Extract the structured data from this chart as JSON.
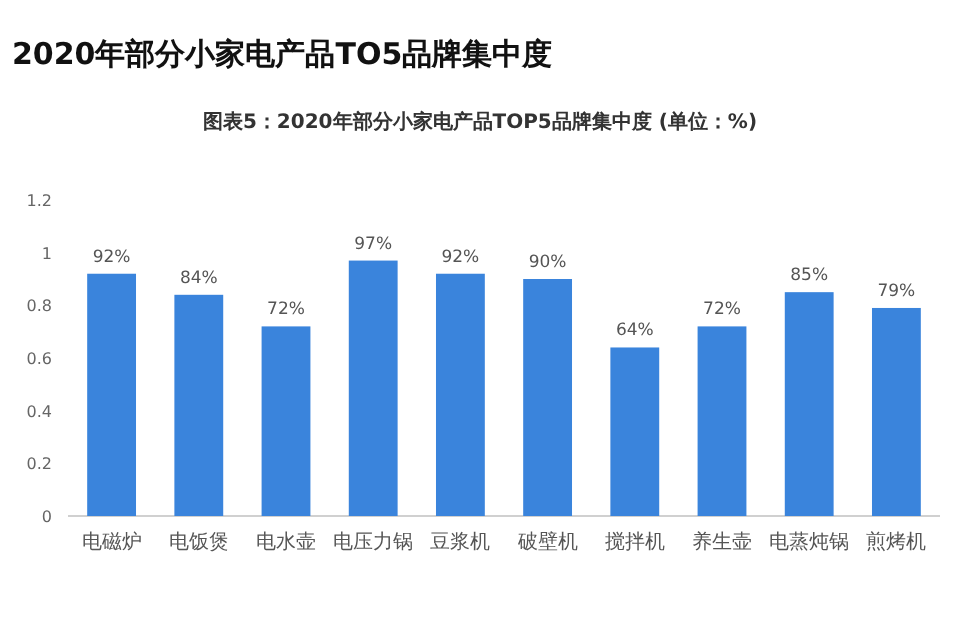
{
  "chart_data": {
    "type": "bar",
    "title": "2020年部分小家电产品TO5品牌集中度",
    "subtitle": "图表5：2020年部分小家电产品TOP5品牌集中度 (单位：%)",
    "categories": [
      "电磁炉",
      "电饭煲",
      "电水壶",
      "电压力锅",
      "豆浆机",
      "破壁机",
      "搅拌机",
      "养生壶",
      "电蒸炖锅",
      "煎烤机"
    ],
    "values": [
      0.92,
      0.84,
      0.72,
      0.97,
      0.92,
      0.9,
      0.64,
      0.72,
      0.85,
      0.79
    ],
    "value_labels": [
      "92%",
      "84%",
      "72%",
      "97%",
      "92%",
      "90%",
      "64%",
      "72%",
      "85%",
      "79%"
    ],
    "color": "#3a84dc",
    "ylim": [
      0,
      1.2
    ],
    "yticks": [
      0,
      0.2,
      0.4,
      0.6,
      0.8,
      1,
      1.2
    ],
    "grid": false
  }
}
